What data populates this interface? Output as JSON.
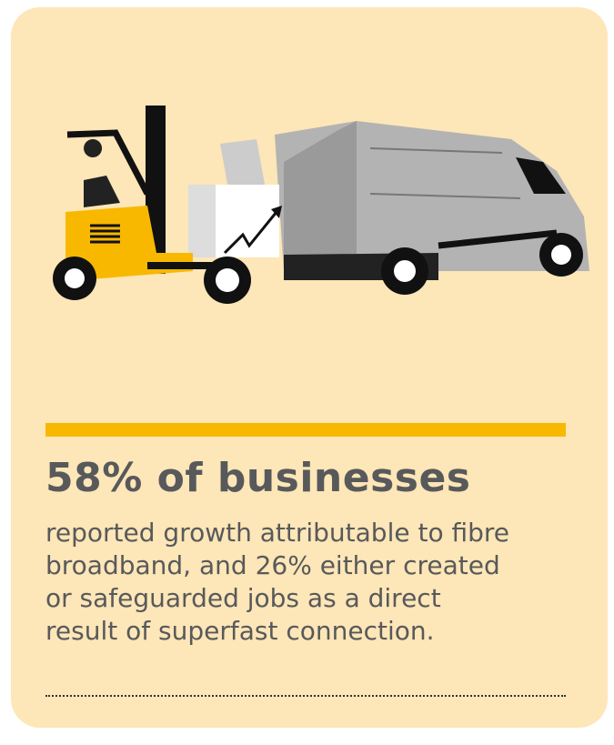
{
  "headline": "58% of businesses",
  "body_lines": [
    "reported growth attributable to fibre",
    "broadband, and 26% either created",
    "or safeguarded jobs as a direct",
    "result of superfast connection."
  ]
}
